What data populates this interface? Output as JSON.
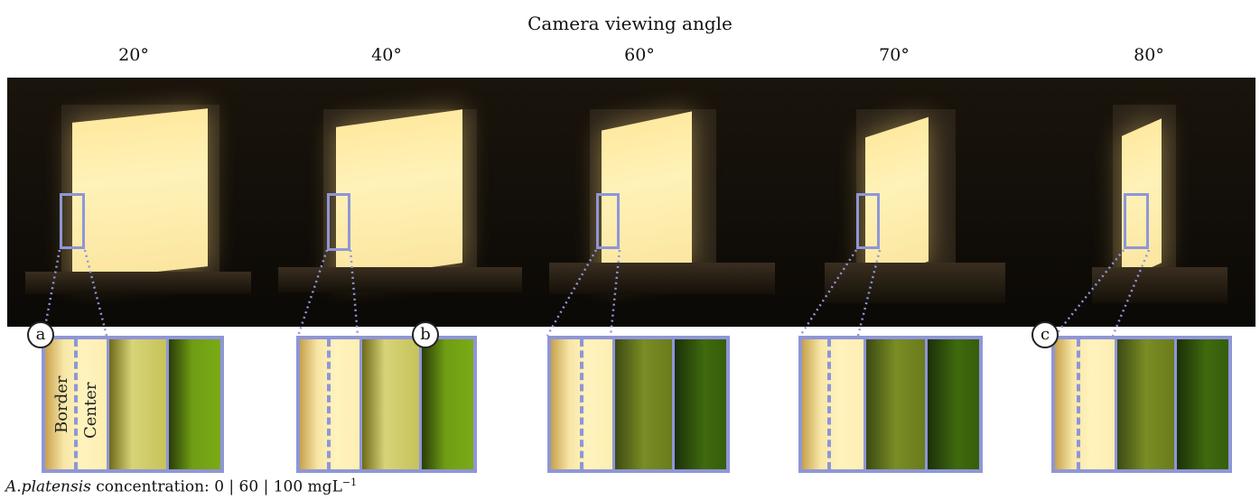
{
  "figure": {
    "title": "Camera viewing angle",
    "angles": [
      "20°",
      "40°",
      "60°",
      "70°",
      "80°"
    ],
    "badges": [
      "a",
      "b",
      "c"
    ],
    "strip_labels": {
      "border": "Border",
      "center": "Center"
    },
    "caption": {
      "species": "A.platensis",
      "text": " concentration: 0 | 60 | 100 mgL",
      "superscript": "−1"
    },
    "colors": {
      "roi": "#8f96d8"
    }
  }
}
